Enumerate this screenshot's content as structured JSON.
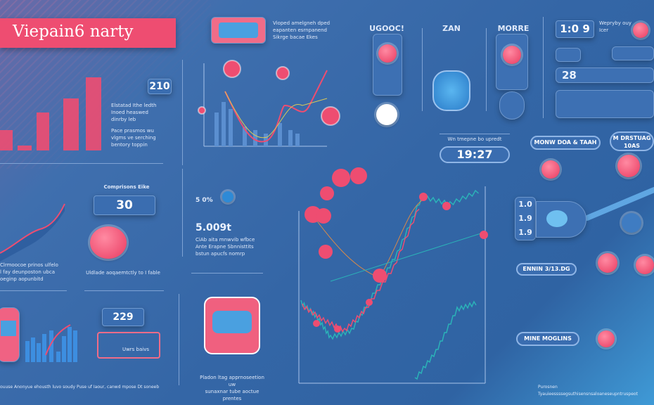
{
  "title": "Viepain6 narty",
  "top_left": {
    "value": "210",
    "text": [
      "Elstatad Ithe ledth",
      "Inoed heaswed",
      "dinrby leb",
      "Pace prasmos wu",
      "vlgms ve serching",
      "bentory toppin"
    ]
  },
  "top_center": {
    "text": [
      "Vioped amelgneh dped",
      "eapanten esrnpanend",
      "Sikrge bacae Ekes"
    ]
  },
  "cards": [
    {
      "heading": "UGOOC!"
    },
    {
      "heading": "ZAN"
    },
    {
      "heading": "MORRE"
    }
  ],
  "right_panel": {
    "stat1": "1:0 9",
    "stat2": "28",
    "caption": "Wepryby ouy Icer"
  },
  "time": {
    "label": "Wn tmepne bo upredt",
    "value": "19:27"
  },
  "pills": [
    "MONW DOA & TAAH",
    "M DRSTUAG 10AS",
    "ENNIN 3/13.DG",
    "MINE MOGLINS"
  ],
  "mid_left": {
    "heading": "Comprisons Eike",
    "value": "30",
    "caption": "Uldlade aoqaemtctly to I fable",
    "text": [
      "Clrmoocoe prinos ulfelo",
      "l fay deunposton ubca",
      "oeginp aopunbitd"
    ]
  },
  "mid_center": {
    "value": "5.009t",
    "small": "5 0%",
    "text": [
      "CiAb aita mnwvib wfbce",
      "Ante Erapne Sbnnisttits",
      "bstun apucfs nomrp"
    ]
  },
  "bottom_left": {
    "value": "229",
    "caption": "Uwrs baivs"
  },
  "bottom_center": {
    "caption": [
      "Pladon ltag apprnoseetion uw",
      "sunaxnar tube aoctue prentes"
    ]
  },
  "mid_right": {
    "values": [
      "1.0",
      "1.9",
      "1.9"
    ]
  },
  "footer": {
    "left": "ouuse Anonyue ehousth luvo soudy Puse uf Iaour, canwd mpose Dt soneeb",
    "right": "Purosnen Tyauieessssegsuthisensnsaloaneseupntruspeot"
  },
  "colors": {
    "accent": "#ee4d71",
    "background": "#3466a6",
    "teal": "#2bb3b8"
  }
}
